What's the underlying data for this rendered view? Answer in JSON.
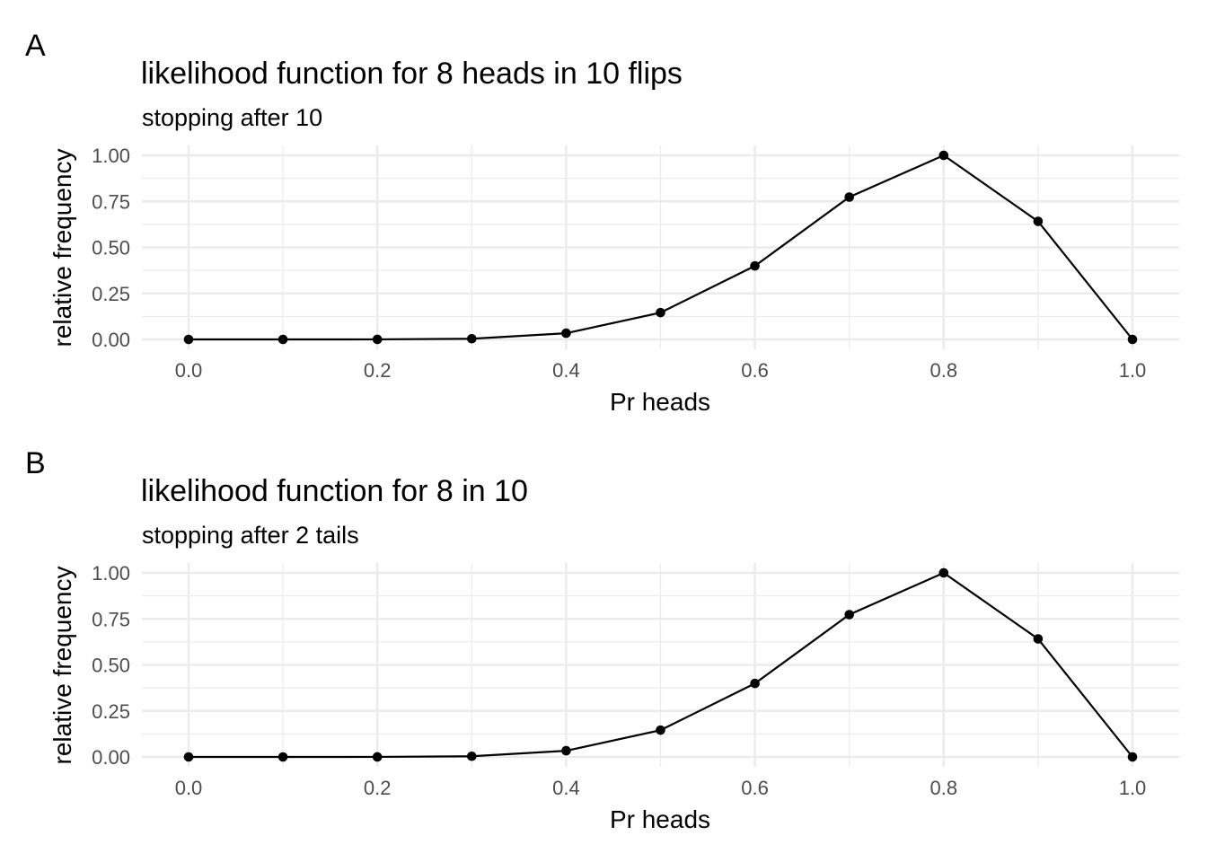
{
  "chart_data": [
    {
      "type": "line",
      "panel_label": "A",
      "title": "likelihood function for 8 heads in 10 flips",
      "subtitle": "stopping after 10",
      "xlabel": "Pr heads",
      "ylabel": "relative frequency",
      "xlim": [
        0,
        1
      ],
      "ylim": [
        0,
        1
      ],
      "x_ticks": [
        "0.0",
        "0.2",
        "0.4",
        "0.6",
        "0.8",
        "1.0"
      ],
      "y_ticks": [
        "0.00",
        "0.25",
        "0.50",
        "0.75",
        "1.00"
      ],
      "grid": true,
      "x": [
        0.0,
        0.1,
        0.2,
        0.3,
        0.4,
        0.5,
        0.6,
        0.7,
        0.8,
        0.9,
        1.0
      ],
      "series": [
        {
          "values": [
            0.0,
            5e-07,
            0.0002,
            0.0036,
            0.0336,
            0.1455,
            0.3993,
            0.7732,
            1.0,
            0.6414,
            0.0
          ]
        }
      ],
      "colors": {
        "series": "#000000",
        "grid": "#ebebeb"
      }
    },
    {
      "type": "line",
      "panel_label": "B",
      "title": "likelihood function for 8 in 10",
      "subtitle": "stopping after 2 tails",
      "xlabel": "Pr heads",
      "ylabel": "relative frequency",
      "xlim": [
        0,
        1
      ],
      "ylim": [
        0,
        1
      ],
      "x_ticks": [
        "0.0",
        "0.2",
        "0.4",
        "0.6",
        "0.8",
        "1.0"
      ],
      "y_ticks": [
        "0.00",
        "0.25",
        "0.50",
        "0.75",
        "1.00"
      ],
      "grid": true,
      "x": [
        0.0,
        0.1,
        0.2,
        0.3,
        0.4,
        0.5,
        0.6,
        0.7,
        0.8,
        0.9,
        1.0
      ],
      "series": [
        {
          "values": [
            0.0,
            5e-07,
            0.0002,
            0.0036,
            0.0336,
            0.1455,
            0.3993,
            0.7732,
            1.0,
            0.6414,
            0.0
          ]
        }
      ],
      "colors": {
        "series": "#000000",
        "grid": "#ebebeb"
      }
    }
  ]
}
